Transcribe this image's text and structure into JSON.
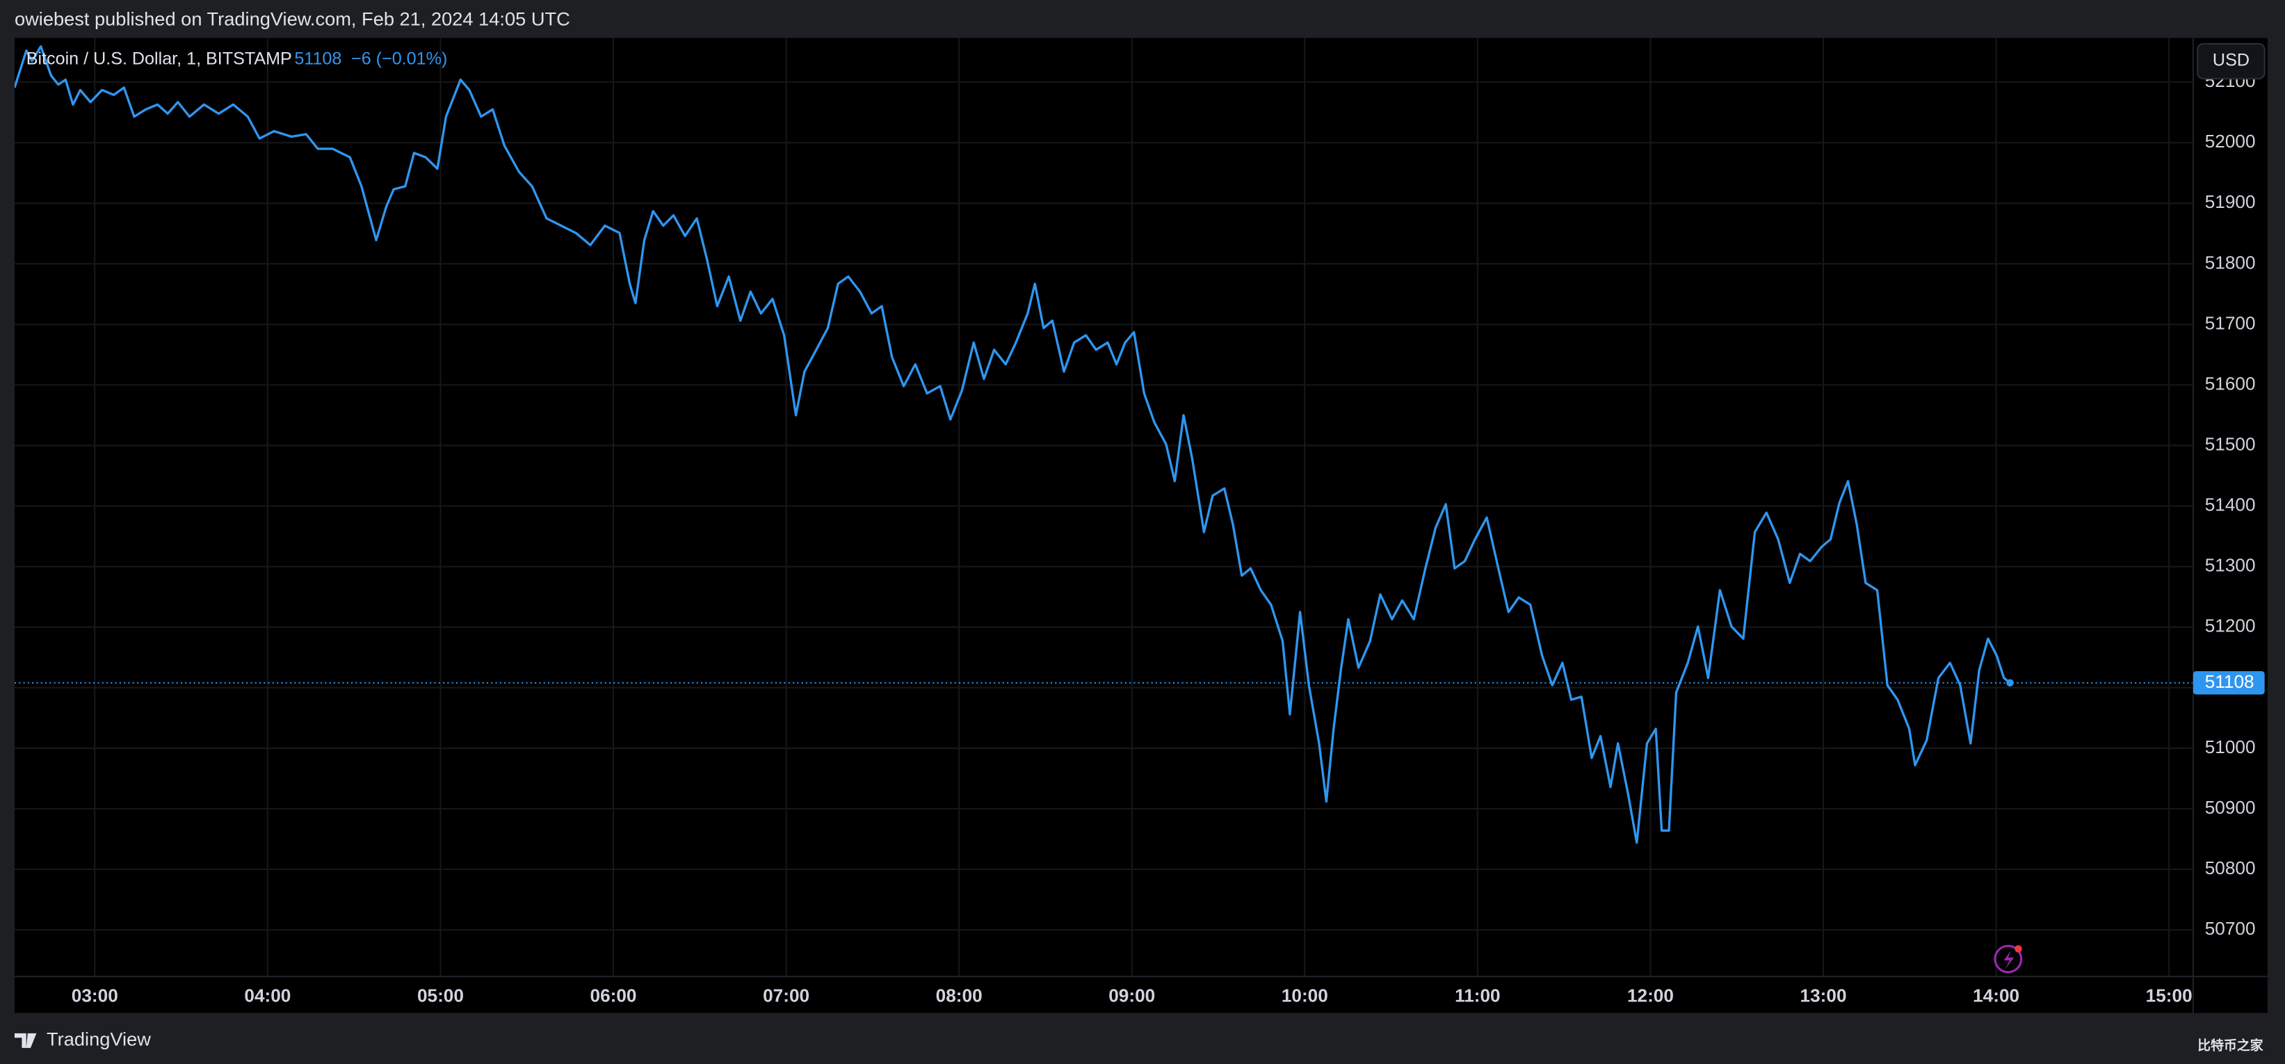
{
  "header": {
    "publisher": "owiebest published on TradingView.com, Feb 21, 2024 14:05 UTC",
    "change": "−6 (−0.01%)",
    "currency": "USD"
  },
  "footer": {
    "brand": "TradingView",
    "watermark": "比特币之家"
  },
  "chart_data": {
    "type": "line",
    "last_price": 51108,
    "x": [
      2.536,
      2.604,
      2.637,
      2.688,
      2.747,
      2.789,
      2.831,
      2.874,
      2.916,
      2.975,
      3.042,
      3.11,
      3.169,
      3.228,
      3.295,
      3.363,
      3.422,
      3.481,
      3.548,
      3.632,
      3.717,
      3.801,
      3.885,
      3.953,
      4.037,
      4.138,
      4.223,
      4.29,
      4.375,
      4.476,
      4.543,
      4.628,
      4.686,
      4.729,
      4.796,
      4.847,
      4.914,
      4.982,
      5.032,
      5.116,
      5.167,
      5.235,
      5.302,
      5.37,
      5.454,
      5.53,
      5.614,
      5.698,
      5.783,
      5.867,
      5.951,
      6.036,
      6.095,
      6.128,
      6.179,
      6.23,
      6.289,
      6.348,
      6.415,
      6.483,
      6.542,
      6.601,
      6.668,
      6.735,
      6.794,
      6.854,
      6.921,
      6.988,
      7.056,
      7.106,
      7.174,
      7.241,
      7.3,
      7.359,
      7.427,
      7.494,
      7.553,
      7.612,
      7.68,
      7.747,
      7.815,
      7.891,
      7.95,
      8.017,
      8.085,
      8.144,
      8.203,
      8.27,
      8.329,
      8.397,
      8.439,
      8.489,
      8.54,
      8.607,
      8.666,
      8.734,
      8.793,
      8.86,
      8.911,
      8.961,
      9.012,
      9.071,
      9.13,
      9.198,
      9.248,
      9.299,
      9.349,
      9.417,
      9.467,
      9.535,
      9.585,
      9.636,
      9.687,
      9.746,
      9.805,
      9.872,
      9.914,
      9.973,
      10.024,
      10.083,
      10.125,
      10.167,
      10.209,
      10.252,
      10.311,
      10.378,
      10.437,
      10.505,
      10.564,
      10.631,
      10.698,
      10.757,
      10.816,
      10.867,
      10.926,
      10.985,
      11.053,
      11.12,
      11.179,
      11.238,
      11.305,
      11.373,
      11.432,
      11.491,
      11.542,
      11.601,
      11.66,
      11.711,
      11.769,
      11.812,
      11.871,
      11.921,
      11.98,
      12.031,
      12.065,
      12.107,
      12.149,
      12.216,
      12.275,
      12.334,
      12.402,
      12.469,
      12.537,
      12.604,
      12.671,
      12.739,
      12.806,
      12.865,
      12.924,
      12.992,
      13.042,
      13.093,
      13.143,
      13.194,
      13.245,
      13.312,
      13.371,
      13.43,
      13.497,
      13.531,
      13.598,
      13.666,
      13.733,
      13.792,
      13.852,
      13.902,
      13.953,
      14.003,
      14.045,
      14.08
    ],
    "series": [
      {
        "name": "Bitcoin / U.S. Dollar, 1, BITSTAMP",
        "color": "#2f96f0",
        "values": [
          52091,
          52152,
          52135,
          52159,
          52111,
          52096,
          52104,
          52063,
          52087,
          52067,
          52087,
          52079,
          52091,
          52043,
          52055,
          52063,
          52048,
          52067,
          52043,
          52063,
          52048,
          52063,
          52043,
          52007,
          52019,
          52010,
          52014,
          51990,
          51990,
          51976,
          51928,
          51839,
          51894,
          51923,
          51928,
          51983,
          51976,
          51957,
          52043,
          52104,
          52087,
          52043,
          52055,
          51995,
          51952,
          51928,
          51875,
          51863,
          51851,
          51831,
          51863,
          51851,
          51767,
          51735,
          51839,
          51887,
          51863,
          51880,
          51846,
          51875,
          51807,
          51730,
          51779,
          51706,
          51754,
          51718,
          51742,
          51682,
          51550,
          51622,
          51658,
          51694,
          51767,
          51779,
          51754,
          51718,
          51730,
          51646,
          51598,
          51634,
          51586,
          51598,
          51543,
          51591,
          51670,
          51610,
          51658,
          51634,
          51670,
          51718,
          51767,
          51694,
          51706,
          51622,
          51670,
          51682,
          51658,
          51670,
          51634,
          51670,
          51687,
          51586,
          51538,
          51502,
          51441,
          51550,
          51478,
          51357,
          51417,
          51429,
          51369,
          51285,
          51297,
          51261,
          51237,
          51177,
          51056,
          51225,
          51104,
          51008,
          50912,
          51032,
          51129,
          51213,
          51133,
          51177,
          51254,
          51213,
          51244,
          51213,
          51297,
          51364,
          51403,
          51297,
          51309,
          51345,
          51381,
          51297,
          51225,
          51249,
          51237,
          51153,
          51104,
          51141,
          51080,
          51085,
          50984,
          51020,
          50936,
          51008,
          50924,
          50844,
          51008,
          51032,
          50864,
          50864,
          51092,
          51141,
          51201,
          51116,
          51261,
          51201,
          51181,
          51357,
          51389,
          51345,
          51273,
          51321,
          51309,
          51333,
          51345,
          51405,
          51441,
          51369,
          51273,
          51261,
          51104,
          51080,
          51032,
          50972,
          51013,
          51116,
          51141,
          51104,
          51008,
          51129,
          51181,
          51153,
          51116,
          51108
        ]
      }
    ],
    "xlim": [
      2.536,
      15.14
    ],
    "ylim": [
      50623,
      52173
    ],
    "xticks": [
      {
        "value": 3,
        "label": "03:00"
      },
      {
        "value": 4,
        "label": "04:00"
      },
      {
        "value": 5,
        "label": "05:00"
      },
      {
        "value": 6,
        "label": "06:00"
      },
      {
        "value": 7,
        "label": "07:00"
      },
      {
        "value": 8,
        "label": "08:00"
      },
      {
        "value": 9,
        "label": "09:00"
      },
      {
        "value": 10,
        "label": "10:00"
      },
      {
        "value": 11,
        "label": "11:00"
      },
      {
        "value": 12,
        "label": "12:00"
      },
      {
        "value": 13,
        "label": "13:00"
      },
      {
        "value": 14,
        "label": "14:00"
      },
      {
        "value": 15,
        "label": "15:00"
      }
    ],
    "yticks": [
      50700,
      50800,
      50900,
      51000,
      51100,
      51200,
      51300,
      51400,
      51500,
      51600,
      51700,
      51800,
      51900,
      52000,
      52100
    ],
    "grid": true
  }
}
